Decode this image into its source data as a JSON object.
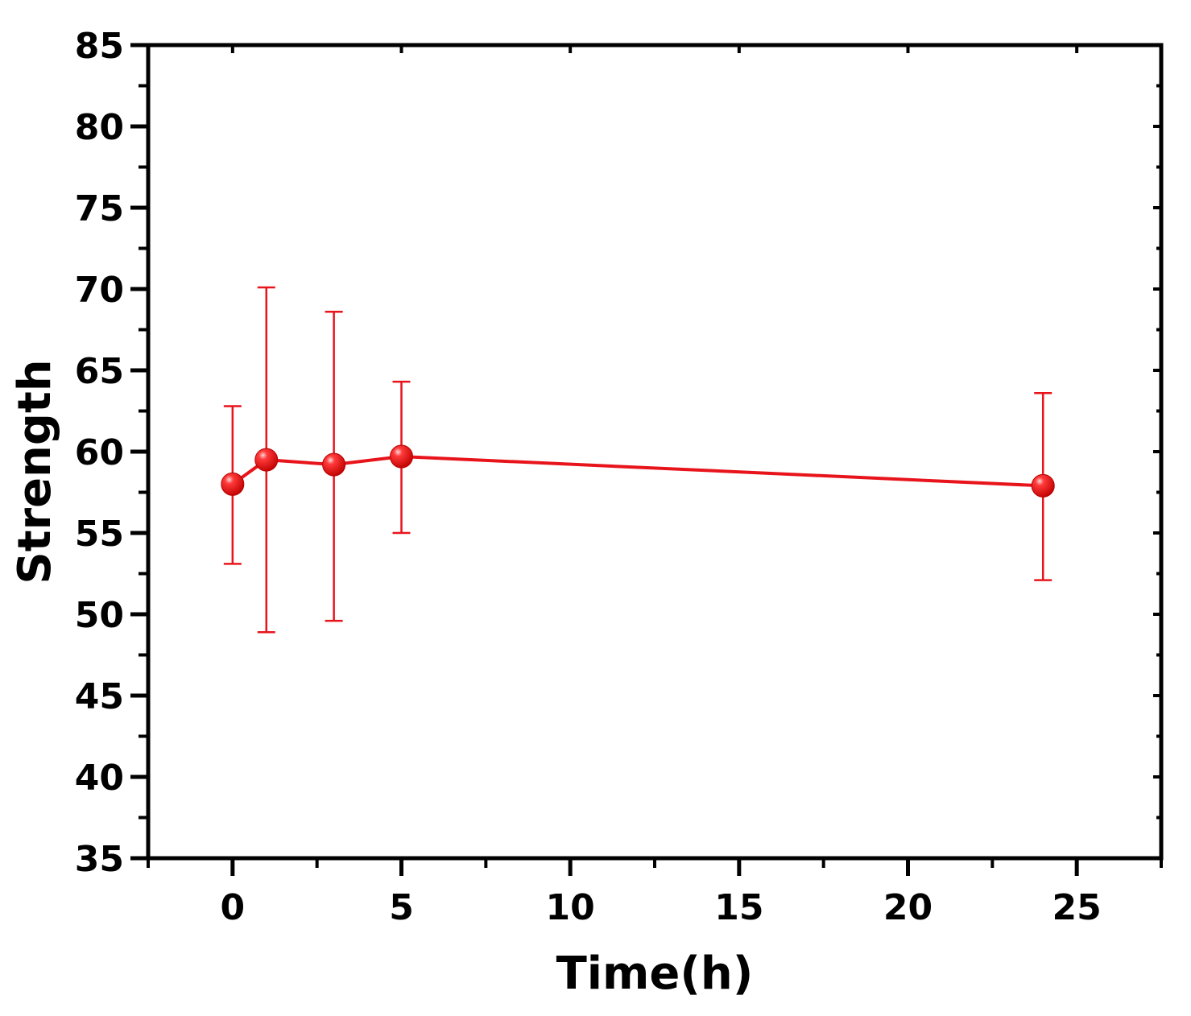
{
  "chart_data": {
    "type": "scatter",
    "title": "",
    "xlabel": "Time(h)",
    "ylabel": "Strength",
    "xlim": [
      -2.5,
      27.5
    ],
    "ylim": [
      35,
      85
    ],
    "xticks": [
      0,
      5,
      10,
      15,
      20,
      25
    ],
    "xtick_labels": [
      "0",
      "5",
      "10",
      "15",
      "20",
      "25"
    ],
    "yticks": [
      35,
      40,
      45,
      50,
      55,
      60,
      65,
      70,
      75,
      80,
      85
    ],
    "ytick_labels": [
      "35",
      "40",
      "45",
      "50",
      "55",
      "60",
      "65",
      "70",
      "75",
      "80",
      "85"
    ],
    "grid": false,
    "legend": "none",
    "series": [
      {
        "color": "#e8141b",
        "points": [
          {
            "x": 0,
            "y": 58.0,
            "err_low": 53.1,
            "err_high": 62.8
          },
          {
            "x": 1,
            "y": 59.5,
            "err_low": 48.9,
            "err_high": 70.1
          },
          {
            "x": 3,
            "y": 59.2,
            "err_low": 49.6,
            "err_high": 68.6
          },
          {
            "x": 5,
            "y": 59.7,
            "err_low": 55.0,
            "err_high": 64.3
          },
          {
            "x": 24,
            "y": 57.9,
            "err_low": 52.1,
            "err_high": 63.6
          }
        ]
      }
    ]
  }
}
